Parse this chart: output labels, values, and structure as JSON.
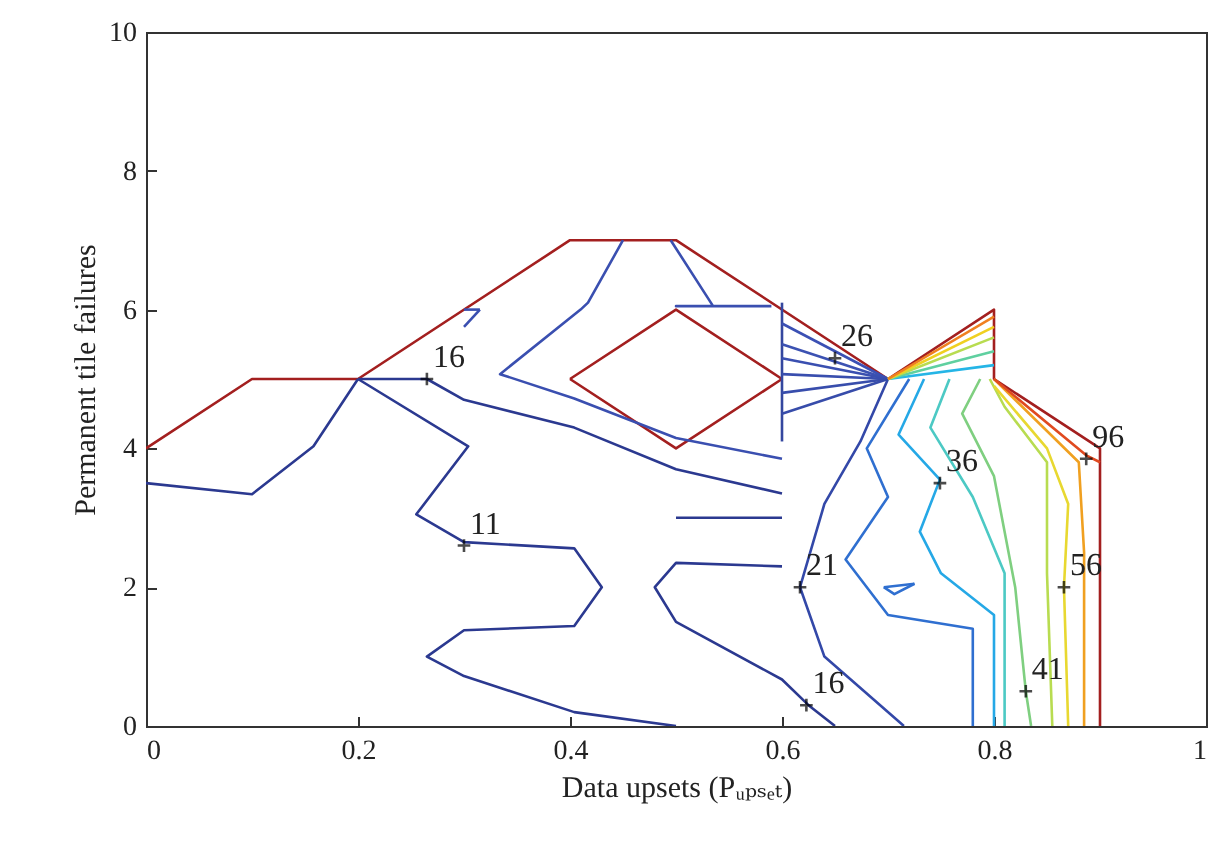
{
  "chart_data": {
    "type": "line",
    "xlabel": "Data upsets (Pᵤₚₛₑₜ)",
    "ylabel": "Permanent tile failures",
    "xlim": [
      0,
      1
    ],
    "ylim": [
      0,
      10
    ],
    "xticks": [
      0,
      0.2,
      0.4,
      0.6,
      0.8,
      1
    ],
    "yticks": [
      0,
      2,
      4,
      6,
      8,
      10
    ],
    "series": [
      {
        "color": "#a31f1f",
        "x": [
          0,
          0.1,
          0.2,
          0.4,
          0.5,
          0.7,
          0.8,
          0.8,
          0.9,
          0.9
        ],
        "values": [
          4,
          5,
          5,
          7,
          7,
          5,
          6,
          5,
          4,
          0
        ]
      },
      {
        "color": "#a31f1f",
        "x": [
          0.4,
          0.5,
          0.6
        ],
        "values": [
          5,
          6,
          5
        ]
      },
      {
        "color": "#a31f1f",
        "x": [
          0.4,
          0.5,
          0.6
        ],
        "values": [
          5,
          4,
          5
        ]
      },
      {
        "color": "#2b3990",
        "x": [
          0,
          0.1,
          0.158,
          0.2
        ],
        "values": [
          3.5,
          3.34,
          4.03,
          5
        ]
      },
      {
        "color": "#2b3990",
        "x": [
          0.2,
          0.304,
          0.255,
          0.3,
          0.404,
          0.43,
          0.404,
          0.3,
          0.265,
          0.3,
          0.404,
          0.5
        ],
        "values": [
          5,
          4.03,
          3.05,
          2.65,
          2.56,
          2.0,
          1.44,
          1.38,
          1.0,
          0.72,
          0.2,
          0
        ]
      },
      {
        "color": "#2b3990",
        "x": [
          0.2,
          0.265,
          0.3,
          0.404,
          0.5,
          0.6
        ],
        "values": [
          5,
          5,
          4.7,
          4.3,
          3.7,
          3.35
        ]
      },
      {
        "color": "#3a4fb0",
        "x": [
          0.45,
          0.417,
          0.41,
          0.334,
          0.404,
          0.5,
          0.6
        ],
        "values": [
          7,
          6.1,
          6.0,
          5.07,
          4.72,
          4.15,
          3.85
        ]
      },
      {
        "color": "#2b3990",
        "x": [
          0.5,
          0.6
        ],
        "values": [
          3,
          3
        ]
      },
      {
        "color": "#2b3990",
        "x": [
          0.6,
          0.5,
          0.48,
          0.5,
          0.6,
          0.625,
          0.65
        ],
        "values": [
          2.3,
          2.35,
          2.0,
          1.5,
          0.67,
          0.3,
          0
        ]
      },
      {
        "color": "#3a4fb0",
        "x": [
          0.495,
          0.535,
          0.5,
          0.59
        ],
        "values": [
          7,
          6.05,
          6.05,
          6.05
        ]
      },
      {
        "color": "#3a4fb0",
        "x": [
          0.3,
          0.315
        ],
        "values": [
          6.0,
          6.0
        ]
      },
      {
        "color": "#3a4fb0",
        "x": [
          0.3,
          0.315
        ],
        "values": [
          5.75,
          6.0
        ]
      },
      {
        "color": "#34479f",
        "x": [
          0.6,
          0.6
        ],
        "values": [
          6.1,
          4.1
        ]
      },
      {
        "color": "#3b50b4",
        "x": [
          0.6,
          0.7
        ],
        "values": [
          5.8,
          5
        ]
      },
      {
        "color": "#3c52b2",
        "x": [
          0.6,
          0.7
        ],
        "values": [
          5.5,
          5
        ]
      },
      {
        "color": "#3a4fb0",
        "x": [
          0.6,
          0.7
        ],
        "values": [
          5.3,
          5
        ]
      },
      {
        "color": "#394eae",
        "x": [
          0.6,
          0.7
        ],
        "values": [
          5.07,
          5
        ]
      },
      {
        "color": "#384dac",
        "x": [
          0.6,
          0.7
        ],
        "values": [
          4.8,
          5
        ]
      },
      {
        "color": "#374caa",
        "x": [
          0.6,
          0.7
        ],
        "values": [
          4.5,
          5
        ]
      },
      {
        "color": "#3348a8",
        "x": [
          0.617,
          0.64,
          0.674,
          0.7
        ],
        "values": [
          2.0,
          3.2,
          4.1,
          5
        ]
      },
      {
        "color": "#3348a8",
        "x": [
          0.617,
          0.64,
          0.715
        ],
        "values": [
          2.0,
          1.0,
          0
        ]
      },
      {
        "color": "#2f6fd0",
        "x": [
          0.72,
          0.68,
          0.7,
          0.66,
          0.7,
          0.78,
          0.78
        ],
        "values": [
          5,
          4.0,
          3.3,
          2.4,
          1.6,
          1.4,
          0
        ]
      },
      {
        "color": "#2f6fd0",
        "x": [
          0.696,
          0.725
        ],
        "values": [
          2.0,
          2.05
        ]
      },
      {
        "color": "#2f6fd0",
        "x": [
          0.696,
          0.706,
          0.725
        ],
        "values": [
          2.0,
          1.9,
          2.05
        ]
      },
      {
        "color": "#25a8e6",
        "x": [
          0.734,
          0.71,
          0.749,
          0.73,
          0.75,
          0.8,
          0.8
        ],
        "values": [
          5,
          4.2,
          3.55,
          2.8,
          2.2,
          1.6,
          0
        ]
      },
      {
        "color": "#4cc9c4",
        "x": [
          0.758,
          0.74,
          0.78,
          0.81,
          0.81
        ],
        "values": [
          5,
          4.3,
          3.3,
          2.2,
          0
        ]
      },
      {
        "color": "#7fcf80",
        "x": [
          0.787,
          0.77,
          0.8,
          0.82,
          0.83,
          0.835
        ],
        "values": [
          5,
          4.5,
          3.6,
          2.0,
          0.5,
          0
        ]
      },
      {
        "color": "#b8dc50",
        "x": [
          0.796,
          0.81,
          0.85,
          0.85,
          0.855
        ],
        "values": [
          5,
          4.6,
          3.8,
          2.2,
          0
        ]
      },
      {
        "color": "#e8d830",
        "x": [
          0.8,
          0.85,
          0.87,
          0.866,
          0.87
        ],
        "values": [
          4.9,
          4,
          3.2,
          2,
          0
        ]
      },
      {
        "color": "#f0a020",
        "x": [
          0.8,
          0.88,
          0.885,
          0.885
        ],
        "values": [
          5,
          3.8,
          2.5,
          0
        ]
      },
      {
        "color": "#e04a20",
        "x": [
          0.8,
          0.887,
          0.9
        ],
        "values": [
          5,
          3.9,
          3.8
        ]
      },
      {
        "color": "#25b5e6",
        "x": [
          0.7,
          0.8
        ],
        "values": [
          5,
          5.2
        ]
      },
      {
        "color": "#5fd0a0",
        "x": [
          0.7,
          0.8
        ],
        "values": [
          5,
          5.4
        ]
      },
      {
        "color": "#b8dc50",
        "x": [
          0.7,
          0.8
        ],
        "values": [
          5,
          5.6
        ]
      },
      {
        "color": "#f0d020",
        "x": [
          0.7,
          0.8
        ],
        "values": [
          5,
          5.75
        ]
      },
      {
        "color": "#f08020",
        "x": [
          0.7,
          0.8
        ],
        "values": [
          5,
          5.9
        ]
      }
    ],
    "annotations": [
      {
        "text": "16",
        "x": 0.265,
        "y": 5
      },
      {
        "text": "11",
        "x": 0.3,
        "y": 2.6
      },
      {
        "text": "26",
        "x": 0.65,
        "y": 5.3
      },
      {
        "text": "36",
        "x": 0.749,
        "y": 3.5
      },
      {
        "text": "21",
        "x": 0.617,
        "y": 2.0
      },
      {
        "text": "16",
        "x": 0.623,
        "y": 0.3
      },
      {
        "text": "41",
        "x": 0.83,
        "y": 0.5
      },
      {
        "text": "56",
        "x": 0.866,
        "y": 2.0
      },
      {
        "text": "96",
        "x": 0.887,
        "y": 3.85
      }
    ]
  }
}
